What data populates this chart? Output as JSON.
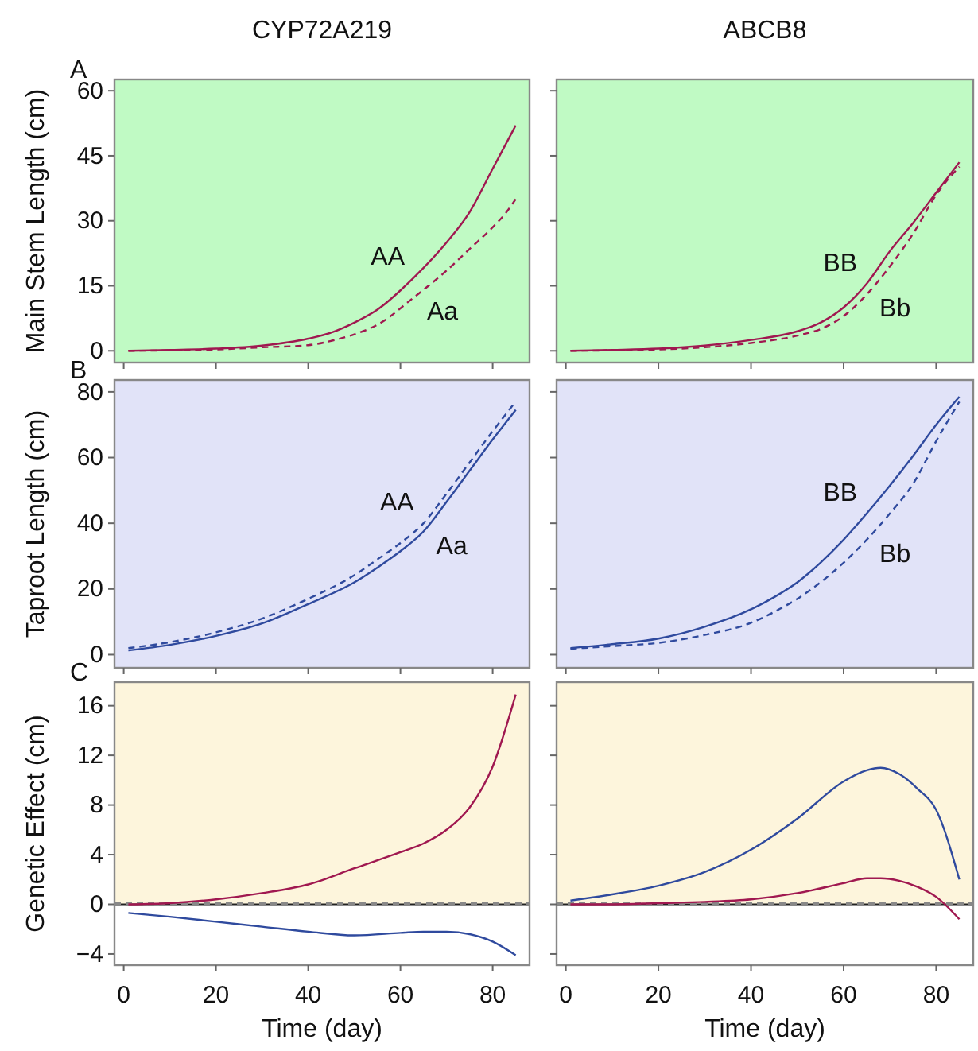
{
  "chart_data": [
    {
      "type": "line",
      "title": "CYP72A219",
      "ylabel": "Main Stem Length (cm)",
      "xlim": [
        -2,
        88
      ],
      "xticks": [
        0,
        20,
        40,
        60,
        80
      ],
      "ylim": [
        -2.7,
        62.6
      ],
      "yticks": [
        0,
        15,
        30,
        45,
        60
      ],
      "tick_labels": "y",
      "bands": [
        {
          "axis": "y",
          "from": -2.7,
          "to": 62.6,
          "color": "#c0fac4"
        }
      ],
      "annotations": [
        "A"
      ],
      "x": [
        1,
        10,
        20,
        30,
        40,
        45,
        50,
        55,
        63,
        70,
        75,
        80,
        83,
        85
      ],
      "series": [
        {
          "name": "AA",
          "color": "#a01850",
          "line_style": "solid",
          "values": [
            0,
            0.2,
            0.5,
            1.2,
            2.8,
            4.2,
            6.5,
            9.5,
            17,
            25,
            32,
            42,
            48,
            52
          ]
        },
        {
          "name": "Aa",
          "color": "#a01850",
          "line_style": "dashed",
          "values": [
            0,
            0.1,
            0.3,
            0.8,
            1.3,
            2.3,
            3.8,
            6,
            12.4,
            18.5,
            23.5,
            28.5,
            32,
            35
          ]
        }
      ]
    },
    {
      "type": "line",
      "title": "ABCB8",
      "xlim": [
        -2,
        88
      ],
      "xticks": [
        0,
        20,
        40,
        60,
        80
      ],
      "ylim": [
        -2.7,
        62.6
      ],
      "yticks": [
        0,
        15,
        30,
        45,
        60
      ],
      "tick_labels": false,
      "bands": [
        {
          "axis": "y",
          "from": -2.7,
          "to": 62.6,
          "color": "#c0fac4"
        }
      ],
      "x": [
        1,
        10,
        20,
        30,
        40,
        50,
        55,
        60,
        65,
        70,
        75,
        80,
        85
      ],
      "series": [
        {
          "name": "BB",
          "color": "#a01850",
          "line_style": "solid",
          "values": [
            0,
            0.2,
            0.5,
            1.2,
            2.5,
            4.5,
            6.5,
            10,
            15.5,
            23,
            29.5,
            36.5,
            43.5
          ]
        },
        {
          "name": "Bb",
          "color": "#a01850",
          "line_style": "dashed",
          "values": [
            0,
            0.1,
            0.3,
            0.8,
            1.8,
            3.5,
            5,
            8,
            13,
            19.5,
            27,
            36,
            42.5
          ]
        }
      ]
    },
    {
      "type": "line",
      "ylabel": "Taproot Length (cm)",
      "xlim": [
        -2,
        88
      ],
      "xticks": [
        0,
        20,
        40,
        60,
        80
      ],
      "ylim": [
        -4,
        83.6
      ],
      "yticks": [
        0,
        20,
        40,
        60,
        80
      ],
      "tick_labels": "y",
      "bands": [
        {
          "axis": "y",
          "from": -4,
          "to": 83.6,
          "color": "#e1e3f8"
        }
      ],
      "annotations": [
        "B"
      ],
      "x": [
        1,
        10,
        20,
        30,
        40,
        50,
        55,
        60,
        65,
        70,
        75,
        80,
        85
      ],
      "series": [
        {
          "name": "Aa",
          "color": "#2f4a9e",
          "line_style": "solid",
          "values": [
            1.3,
            3,
            5.7,
            9.5,
            15.4,
            22,
            26.5,
            31.5,
            37.5,
            46.5,
            56,
            65.5,
            74.5
          ]
        },
        {
          "name": "AA",
          "color": "#2f4a9e",
          "line_style": "dashed",
          "values": [
            2,
            3.8,
            6.8,
            11,
            17,
            24.2,
            29,
            34,
            40,
            49,
            58.5,
            68,
            77
          ]
        }
      ]
    },
    {
      "type": "line",
      "xlim": [
        -2,
        88
      ],
      "xticks": [
        0,
        20,
        40,
        60,
        80
      ],
      "ylim": [
        -4,
        83.6
      ],
      "yticks": [
        0,
        20,
        40,
        60,
        80
      ],
      "tick_labels": false,
      "bands": [
        {
          "axis": "y",
          "from": -4,
          "to": 83.6,
          "color": "#e1e3f8"
        }
      ],
      "x": [
        1,
        10,
        20,
        30,
        40,
        45,
        50,
        55,
        60,
        65,
        70,
        75,
        80,
        85
      ],
      "series": [
        {
          "name": "BB",
          "color": "#2f4a9e",
          "line_style": "solid",
          "values": [
            2,
            3.2,
            4.9,
            8.5,
            13.8,
            17.5,
            22,
            28,
            35,
            43,
            51.5,
            60.5,
            70,
            78.5
          ]
        },
        {
          "name": "Bb",
          "color": "#2f4a9e",
          "line_style": "dashed",
          "values": [
            1.8,
            2.6,
            3.6,
            6,
            9.7,
            13,
            17,
            22,
            28,
            35,
            43,
            52,
            65,
            77
          ]
        }
      ]
    },
    {
      "type": "line",
      "ylabel": "Genetic Effect (cm)",
      "xlabel": "Time (day)",
      "xlim": [
        -2,
        88
      ],
      "xticks": [
        0,
        20,
        40,
        60,
        80
      ],
      "ylim": [
        -4.9,
        17.9
      ],
      "yticks": [
        {
          "value": -4,
          "label": "−4"
        },
        0,
        4,
        8,
        12,
        16
      ],
      "bands": [
        {
          "axis": "y",
          "from": 0,
          "to": 17.9,
          "color": "#fdf5dc"
        }
      ],
      "ref_lines": [
        {
          "axis": "y",
          "value": 0,
          "color": "#888888",
          "line_style": "dashed"
        }
      ],
      "annotations": [
        "C"
      ],
      "x": [
        1,
        10,
        20,
        30,
        40,
        50,
        60,
        65,
        70,
        75,
        80,
        85
      ],
      "series": [
        {
          "color": "#a01850",
          "line_style": "solid",
          "values": [
            0,
            0.1,
            0.4,
            0.9,
            1.6,
            2.9,
            4.2,
            4.9,
            6,
            7.8,
            11.1,
            16.9
          ]
        },
        {
          "color": "#2f4a9e",
          "line_style": "solid",
          "values": [
            -0.7,
            -1,
            -1.4,
            -1.8,
            -2.2,
            -2.5,
            -2.3,
            -2.2,
            -2.2,
            -2.4,
            -3,
            -4.1
          ]
        }
      ]
    },
    {
      "type": "line",
      "xlabel": "Time (day)",
      "xlim": [
        -2,
        88
      ],
      "xticks": [
        0,
        20,
        40,
        60,
        80
      ],
      "ylim": [
        -4.9,
        17.9
      ],
      "yticks": [
        -4,
        0,
        4,
        8,
        12,
        16
      ],
      "tick_labels": "x",
      "bands": [
        {
          "axis": "y",
          "from": 0,
          "to": 17.9,
          "color": "#fdf5dc"
        }
      ],
      "ref_lines": [
        {
          "axis": "y",
          "value": 0,
          "color": "#888888",
          "line_style": "dashed"
        }
      ],
      "x": [
        1,
        10,
        20,
        30,
        40,
        50,
        60,
        65,
        68,
        72,
        76,
        80,
        85
      ],
      "series": [
        {
          "color": "#2f4a9e",
          "line_style": "solid",
          "values": [
            0.3,
            0.8,
            1.5,
            2.6,
            4.4,
            6.9,
            9.9,
            10.8,
            11,
            10.5,
            9.3,
            7.6,
            2
          ]
        },
        {
          "color": "#a01850",
          "line_style": "solid",
          "values": [
            0,
            0,
            0.1,
            0.2,
            0.4,
            0.9,
            1.7,
            2.1,
            2.1,
            1.9,
            1.4,
            0.6,
            -1.2
          ]
        }
      ]
    }
  ]
}
